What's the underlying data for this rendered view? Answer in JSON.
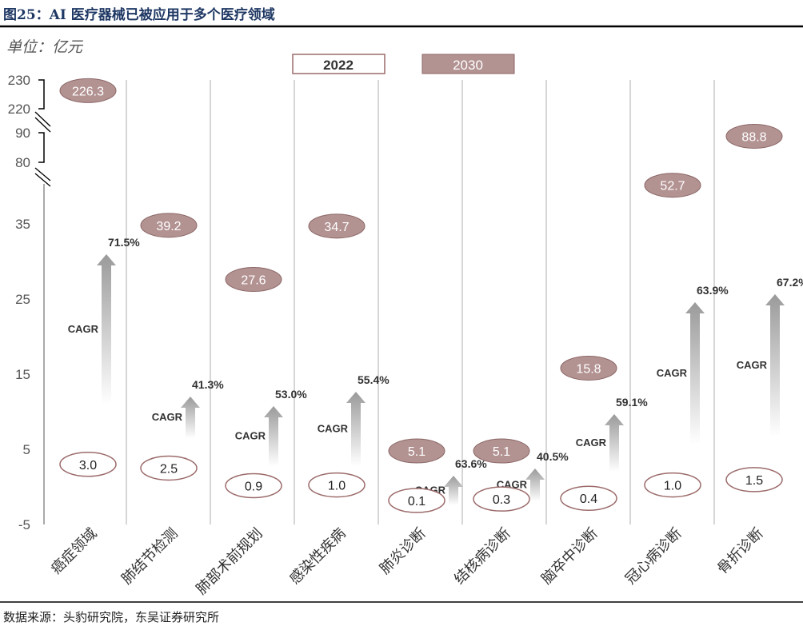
{
  "title": "图25：AI 医疗器械已被应用于多个医疗领域",
  "unit": "单位：亿元",
  "source": "数据来源：头豹研究院，东吴证券研究所",
  "colors": {
    "y2022_fill": "#ffffff",
    "y2022_border": "#9c6b6b",
    "y2030_fill": "#b39292",
    "y2030_border": "#8c6767",
    "arrow": "#9a9a9a",
    "title": "#1f3864"
  },
  "chart_data": {
    "type": "bubble-label",
    "title": "",
    "yaxis": {
      "ticks": [
        230,
        220,
        90,
        80,
        35,
        25,
        15,
        5,
        -5
      ],
      "broken": true,
      "breaks": [
        [
          90,
          220
        ],
        [
          35,
          80
        ]
      ]
    },
    "legend": {
      "position": "top-center",
      "entries": [
        "2022",
        "2030"
      ]
    },
    "cagr_label": "CAGR",
    "categories": [
      "癌症领域",
      "肺结节检测",
      "肺部术前规划",
      "感染性疾病",
      "肺炎诊断",
      "结核病诊断",
      "脑卒中诊断",
      "冠心病诊断",
      "骨折诊断"
    ],
    "series": [
      {
        "name": "2022",
        "values": [
          3.0,
          2.5,
          0.9,
          1.0,
          0.1,
          0.3,
          0.4,
          1.0,
          1.5
        ]
      },
      {
        "name": "2030",
        "values": [
          226.3,
          39.2,
          27.6,
          34.7,
          5.1,
          5.1,
          15.8,
          52.7,
          88.8
        ]
      }
    ],
    "cagr": [
      "71.5%",
      "41.3%",
      "53.0%",
      "55.4%",
      "63.6%",
      "40.5%",
      "59.1%",
      "63.9%",
      "67.2%"
    ]
  }
}
